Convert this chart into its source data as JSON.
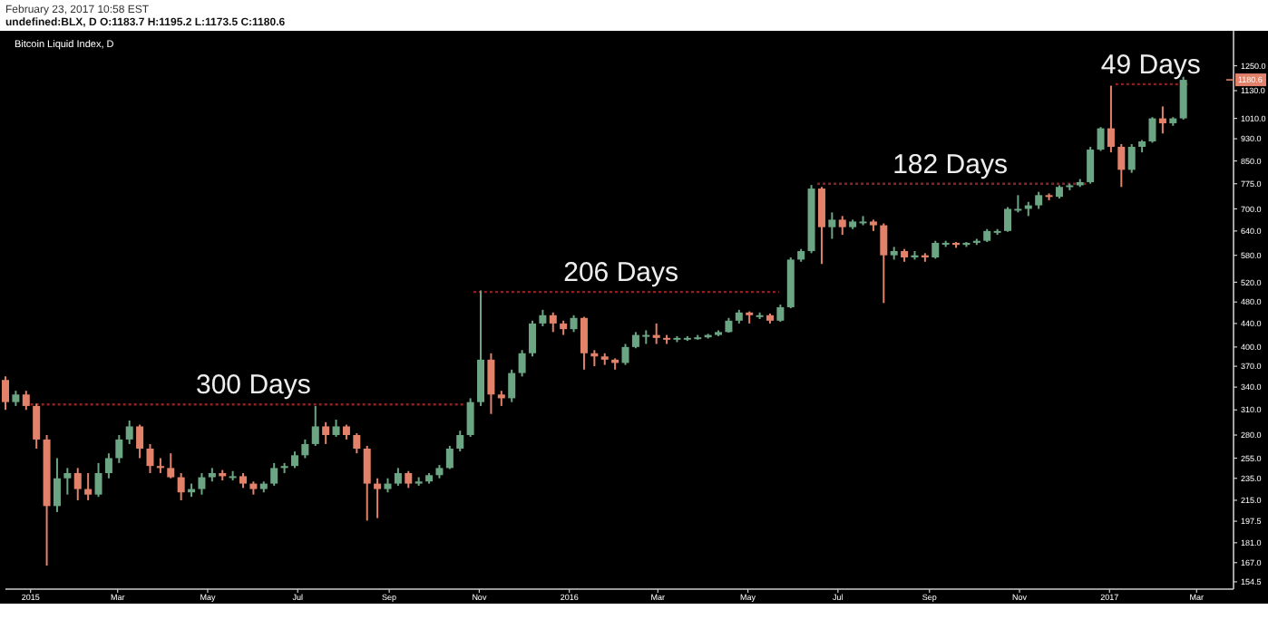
{
  "chart_data": {
    "type": "candlestick",
    "title": "Bitcoin Liquid Index, D",
    "subtitle": "undefined:BLX, D  O:1183.7 H:1195.2 L:1173.5 C:1180.6",
    "x": [
      "2014-12-15",
      "2014-12-22",
      "2014-12-29",
      "2015-01-05",
      "2015-01-12",
      "2015-01-19",
      "2015-01-26",
      "2015-02-02",
      "2015-02-09",
      "2015-02-16",
      "2015-02-23",
      "2015-03-02",
      "2015-03-09",
      "2015-03-16",
      "2015-03-23",
      "2015-03-30",
      "2015-04-06",
      "2015-04-13",
      "2015-04-20",
      "2015-04-27",
      "2015-05-04",
      "2015-05-11",
      "2015-05-18",
      "2015-05-25",
      "2015-06-01",
      "2015-06-08",
      "2015-06-15",
      "2015-06-22",
      "2015-06-29",
      "2015-07-06",
      "2015-07-13",
      "2015-07-20",
      "2015-07-27",
      "2015-08-03",
      "2015-08-10",
      "2015-08-17",
      "2015-08-24",
      "2015-08-31",
      "2015-09-07",
      "2015-09-14",
      "2015-09-21",
      "2015-09-28",
      "2015-10-05",
      "2015-10-12",
      "2015-10-19",
      "2015-10-26",
      "2015-11-02",
      "2015-11-09",
      "2015-11-16",
      "2015-11-23",
      "2015-11-30",
      "2015-12-07",
      "2015-12-14",
      "2015-12-21",
      "2015-12-28",
      "2016-01-04",
      "2016-01-11",
      "2016-01-18",
      "2016-01-25",
      "2016-02-01",
      "2016-02-08",
      "2016-02-15",
      "2016-02-22",
      "2016-02-29",
      "2016-03-07",
      "2016-03-14",
      "2016-03-21",
      "2016-03-28",
      "2016-04-04",
      "2016-04-11",
      "2016-04-18",
      "2016-04-25",
      "2016-05-02",
      "2016-05-09",
      "2016-05-16",
      "2016-05-23",
      "2016-05-30",
      "2016-06-06",
      "2016-06-13",
      "2016-06-20",
      "2016-06-27",
      "2016-07-04",
      "2016-07-11",
      "2016-07-18",
      "2016-07-25",
      "2016-08-01",
      "2016-08-08",
      "2016-08-15",
      "2016-08-22",
      "2016-08-29",
      "2016-09-05",
      "2016-09-12",
      "2016-09-19",
      "2016-09-26",
      "2016-10-03",
      "2016-10-10",
      "2016-10-17",
      "2016-10-24",
      "2016-10-31",
      "2016-11-07",
      "2016-11-14",
      "2016-11-21",
      "2016-11-28",
      "2016-12-05",
      "2016-12-12",
      "2016-12-19",
      "2016-12-26",
      "2017-01-02",
      "2017-01-09",
      "2017-01-16",
      "2017-01-23",
      "2017-01-30",
      "2017-02-06",
      "2017-02-13",
      "2017-02-20"
    ],
    "ohlc": [
      [
        350,
        355,
        310,
        320
      ],
      [
        320,
        335,
        315,
        330
      ],
      [
        330,
        335,
        310,
        315
      ],
      [
        315,
        318,
        265,
        275
      ],
      [
        275,
        280,
        165,
        210
      ],
      [
        210,
        255,
        205,
        235
      ],
      [
        235,
        245,
        220,
        240
      ],
      [
        240,
        245,
        215,
        225
      ],
      [
        225,
        240,
        215,
        220
      ],
      [
        220,
        250,
        218,
        240
      ],
      [
        240,
        260,
        235,
        255
      ],
      [
        255,
        280,
        250,
        275
      ],
      [
        275,
        297,
        270,
        290
      ],
      [
        290,
        292,
        255,
        265
      ],
      [
        265,
        270,
        240,
        247
      ],
      [
        247,
        255,
        240,
        245
      ],
      [
        245,
        260,
        235,
        236
      ],
      [
        236,
        240,
        215,
        222
      ],
      [
        222,
        230,
        218,
        225
      ],
      [
        225,
        240,
        220,
        236
      ],
      [
        236,
        245,
        232,
        240
      ],
      [
        240,
        243,
        233,
        237
      ],
      [
        237,
        242,
        233,
        237
      ],
      [
        237,
        240,
        226,
        230
      ],
      [
        230,
        232,
        220,
        225
      ],
      [
        225,
        232,
        222,
        230
      ],
      [
        230,
        250,
        228,
        245
      ],
      [
        245,
        250,
        240,
        247
      ],
      [
        247,
        262,
        245,
        258
      ],
      [
        258,
        275,
        255,
        270
      ],
      [
        270,
        315,
        268,
        290
      ],
      [
        290,
        295,
        270,
        280
      ],
      [
        280,
        298,
        278,
        290
      ],
      [
        290,
        292,
        275,
        280
      ],
      [
        280,
        282,
        260,
        265
      ],
      [
        265,
        268,
        198,
        230
      ],
      [
        230,
        235,
        200,
        225
      ],
      [
        225,
        235,
        222,
        230
      ],
      [
        230,
        245,
        228,
        240
      ],
      [
        240,
        242,
        226,
        230
      ],
      [
        230,
        236,
        228,
        232
      ],
      [
        232,
        240,
        230,
        238
      ],
      [
        238,
        248,
        235,
        245
      ],
      [
        245,
        268,
        244,
        265
      ],
      [
        265,
        285,
        262,
        280
      ],
      [
        280,
        325,
        278,
        320
      ],
      [
        320,
        503,
        315,
        380
      ],
      [
        380,
        390,
        305,
        330
      ],
      [
        330,
        335,
        315,
        325
      ],
      [
        325,
        365,
        320,
        360
      ],
      [
        360,
        395,
        355,
        390
      ],
      [
        390,
        445,
        385,
        440
      ],
      [
        440,
        465,
        435,
        455
      ],
      [
        455,
        460,
        425,
        440
      ],
      [
        440,
        445,
        420,
        430
      ],
      [
        430,
        455,
        425,
        450
      ],
      [
        450,
        452,
        365,
        390
      ],
      [
        390,
        395,
        370,
        385
      ],
      [
        385,
        390,
        372,
        380
      ],
      [
        380,
        382,
        365,
        375
      ],
      [
        375,
        405,
        372,
        400
      ],
      [
        400,
        425,
        398,
        420
      ],
      [
        420,
        428,
        405,
        420
      ],
      [
        420,
        440,
        405,
        415
      ],
      [
        415,
        420,
        405,
        412
      ],
      [
        412,
        418,
        408,
        415
      ],
      [
        415,
        418,
        410,
        415
      ],
      [
        415,
        420,
        412,
        416
      ],
      [
        416,
        422,
        414,
        420
      ],
      [
        420,
        428,
        418,
        425
      ],
      [
        425,
        450,
        424,
        445
      ],
      [
        445,
        465,
        440,
        460
      ],
      [
        460,
        462,
        440,
        455
      ],
      [
        455,
        460,
        448,
        455
      ],
      [
        455,
        458,
        440,
        445
      ],
      [
        445,
        475,
        443,
        470
      ],
      [
        470,
        575,
        468,
        570
      ],
      [
        570,
        595,
        565,
        590
      ],
      [
        590,
        771,
        585,
        760
      ],
      [
        760,
        765,
        560,
        650
      ],
      [
        650,
        690,
        620,
        670
      ],
      [
        670,
        680,
        630,
        650
      ],
      [
        650,
        670,
        645,
        665
      ],
      [
        665,
        680,
        655,
        665
      ],
      [
        665,
        670,
        640,
        655
      ],
      [
        655,
        660,
        478,
        580
      ],
      [
        580,
        600,
        570,
        590
      ],
      [
        590,
        595,
        565,
        575
      ],
      [
        575,
        590,
        570,
        580
      ],
      [
        580,
        585,
        565,
        575
      ],
      [
        575,
        615,
        572,
        610
      ],
      [
        610,
        615,
        600,
        610
      ],
      [
        610,
        612,
        598,
        605
      ],
      [
        605,
        612,
        600,
        610
      ],
      [
        610,
        620,
        605,
        615
      ],
      [
        615,
        645,
        612,
        640
      ],
      [
        640,
        645,
        630,
        640
      ],
      [
        640,
        705,
        638,
        700
      ],
      [
        700,
        740,
        690,
        700
      ],
      [
        700,
        720,
        680,
        710
      ],
      [
        710,
        750,
        700,
        740
      ],
      [
        740,
        745,
        725,
        735
      ],
      [
        735,
        770,
        730,
        765
      ],
      [
        765,
        775,
        755,
        770
      ],
      [
        770,
        790,
        765,
        780
      ],
      [
        780,
        900,
        775,
        890
      ],
      [
        890,
        975,
        885,
        970
      ],
      [
        970,
        1153,
        880,
        900
      ],
      [
        900,
        910,
        765,
        820
      ],
      [
        820,
        910,
        810,
        900
      ],
      [
        900,
        925,
        880,
        920
      ],
      [
        920,
        1015,
        915,
        1010
      ],
      [
        1010,
        1060,
        950,
        990
      ],
      [
        990,
        1015,
        980,
        1010
      ],
      [
        1010,
        1195.2,
        1005,
        1180.6
      ]
    ],
    "colors": [
      "#e2826a",
      "#6ba583",
      "#e2826a",
      "#e2826a",
      "#e2826a",
      "#6ba583",
      "#6ba583",
      "#e2826a",
      "#e2826a",
      "#6ba583",
      "#6ba583",
      "#6ba583",
      "#6ba583",
      "#e2826a",
      "#e2826a",
      "#e2826a",
      "#e2826a",
      "#e2826a",
      "#6ba583",
      "#6ba583",
      "#6ba583",
      "#e2826a",
      "#6ba583",
      "#e2826a",
      "#e2826a",
      "#6ba583",
      "#6ba583",
      "#6ba583",
      "#6ba583",
      "#6ba583",
      "#6ba583",
      "#e2826a",
      "#6ba583",
      "#e2826a",
      "#e2826a",
      "#e2826a",
      "#e2826a",
      "#6ba583",
      "#6ba583",
      "#e2826a",
      "#6ba583",
      "#6ba583",
      "#6ba583",
      "#6ba583",
      "#6ba583",
      "#6ba583",
      "#6ba583",
      "#e2826a",
      "#e2826a",
      "#6ba583",
      "#6ba583",
      "#6ba583",
      "#6ba583",
      "#e2826a",
      "#e2826a",
      "#6ba583",
      "#e2826a",
      "#e2826a",
      "#e2826a",
      "#e2826a",
      "#6ba583",
      "#6ba583",
      "#6ba583",
      "#e2826a",
      "#e2826a",
      "#6ba583",
      "#6ba583",
      "#6ba583",
      "#6ba583",
      "#6ba583",
      "#6ba583",
      "#6ba583",
      "#e2826a",
      "#6ba583",
      "#e2826a",
      "#6ba583",
      "#6ba583",
      "#6ba583",
      "#6ba583",
      "#e2826a",
      "#6ba583",
      "#e2826a",
      "#6ba583",
      "#6ba583",
      "#e2826a",
      "#e2826a",
      "#6ba583",
      "#e2826a",
      "#6ba583",
      "#e2826a",
      "#6ba583",
      "#6ba583",
      "#e2826a",
      "#6ba583",
      "#6ba583",
      "#6ba583",
      "#6ba583",
      "#6ba583",
      "#6ba583",
      "#6ba583",
      "#6ba583",
      "#e2826a",
      "#6ba583",
      "#6ba583",
      "#6ba583",
      "#6ba583",
      "#6ba583",
      "#e2826a",
      "#e2826a",
      "#6ba583",
      "#6ba583",
      "#6ba583",
      "#e2826a",
      "#6ba583",
      "#6ba583"
    ],
    "series": [
      {
        "type": "line",
        "x": [
          "2015-01-01",
          "2015-10-23"
        ],
        "values": [
          317,
          317
        ],
        "color": "#8b2323",
        "line_style": "dotted"
      },
      {
        "type": "line",
        "x": [
          "2015-10-28",
          "2016-05-22"
        ],
        "values": [
          500,
          500
        ],
        "color": "#8b2323",
        "line_style": "dotted"
      },
      {
        "type": "line",
        "x": [
          "2016-06-17",
          "2016-12-16"
        ],
        "values": [
          775,
          775
        ],
        "color": "#8b2323",
        "line_style": "dotted"
      },
      {
        "type": "line",
        "x": [
          "2017-01-05",
          "2017-02-23"
        ],
        "values": [
          1160,
          1160
        ],
        "color": "#8b2323",
        "line_style": "dotted"
      }
    ],
    "annotations": [
      "February 23, 2017 10:58 EST",
      {
        "text": "300 Days",
        "x": "2015-06-01",
        "y": 317
      },
      {
        "text": "206 Days",
        "x": "2016-02-05",
        "y": 500
      },
      {
        "text": "182 Days",
        "x": "2016-09-15",
        "y": 775
      },
      {
        "text": "49 Days",
        "x": "2017-01-29",
        "y": 1160
      }
    ],
    "ref_lines": [
      {
        "axis": "y",
        "value": 1180.6,
        "label": "1180.6",
        "color": "#e2826a"
      }
    ],
    "log": true,
    "xlim": [
      "2014-12-15",
      "2017-03-26"
    ],
    "xticks": [
      {
        "value": "2015-01-01",
        "label": "2015"
      },
      {
        "value": "2015-03-01",
        "label": "Mar"
      },
      {
        "value": "2015-05-01",
        "label": "May"
      },
      {
        "value": "2015-07-01",
        "label": "Jul"
      },
      {
        "value": "2015-09-01",
        "label": "Sep"
      },
      {
        "value": "2015-11-01",
        "label": "Nov"
      },
      {
        "value": "2016-01-01",
        "label": "2016"
      },
      {
        "value": "2016-03-01",
        "label": "Mar"
      },
      {
        "value": "2016-05-01",
        "label": "May"
      },
      {
        "value": "2016-07-01",
        "label": "Jul"
      },
      {
        "value": "2016-09-01",
        "label": "Sep"
      },
      {
        "value": "2016-11-01",
        "label": "Nov"
      },
      {
        "value": "2017-01-01",
        "label": "2017"
      },
      {
        "value": "2017-03-01",
        "label": "Mar"
      }
    ],
    "ylim": [
      150,
      1440
    ],
    "yticks": [
      {
        "value": 154.5,
        "label": "154.5"
      },
      {
        "value": 167,
        "label": "167.0"
      },
      {
        "value": 181,
        "label": "181.0"
      },
      {
        "value": 197.5,
        "label": "197.5"
      },
      {
        "value": 215,
        "label": "215.0"
      },
      {
        "value": 235,
        "label": "235.0"
      },
      {
        "value": 255,
        "label": "255.0"
      },
      {
        "value": 280,
        "label": "280.0"
      },
      {
        "value": 310,
        "label": "310.0"
      },
      {
        "value": 340,
        "label": "340.0"
      },
      {
        "value": 370,
        "label": "370.0"
      },
      {
        "value": 400,
        "label": "400.0"
      },
      {
        "value": 440,
        "label": "440.0"
      },
      {
        "value": 480,
        "label": "480.0"
      },
      {
        "value": 520,
        "label": "520.0"
      },
      {
        "value": 580,
        "label": "580.0"
      },
      {
        "value": 640,
        "label": "640.0"
      },
      {
        "value": 700,
        "label": "700.0"
      },
      {
        "value": 775,
        "label": "775.0"
      },
      {
        "value": 850,
        "label": "850.0"
      },
      {
        "value": 930,
        "label": "930.0"
      },
      {
        "value": 1010,
        "label": "1010.0"
      },
      {
        "value": 1130,
        "label": "1130.0"
      },
      {
        "value": 1250,
        "label": "1250.0"
      }
    ]
  }
}
